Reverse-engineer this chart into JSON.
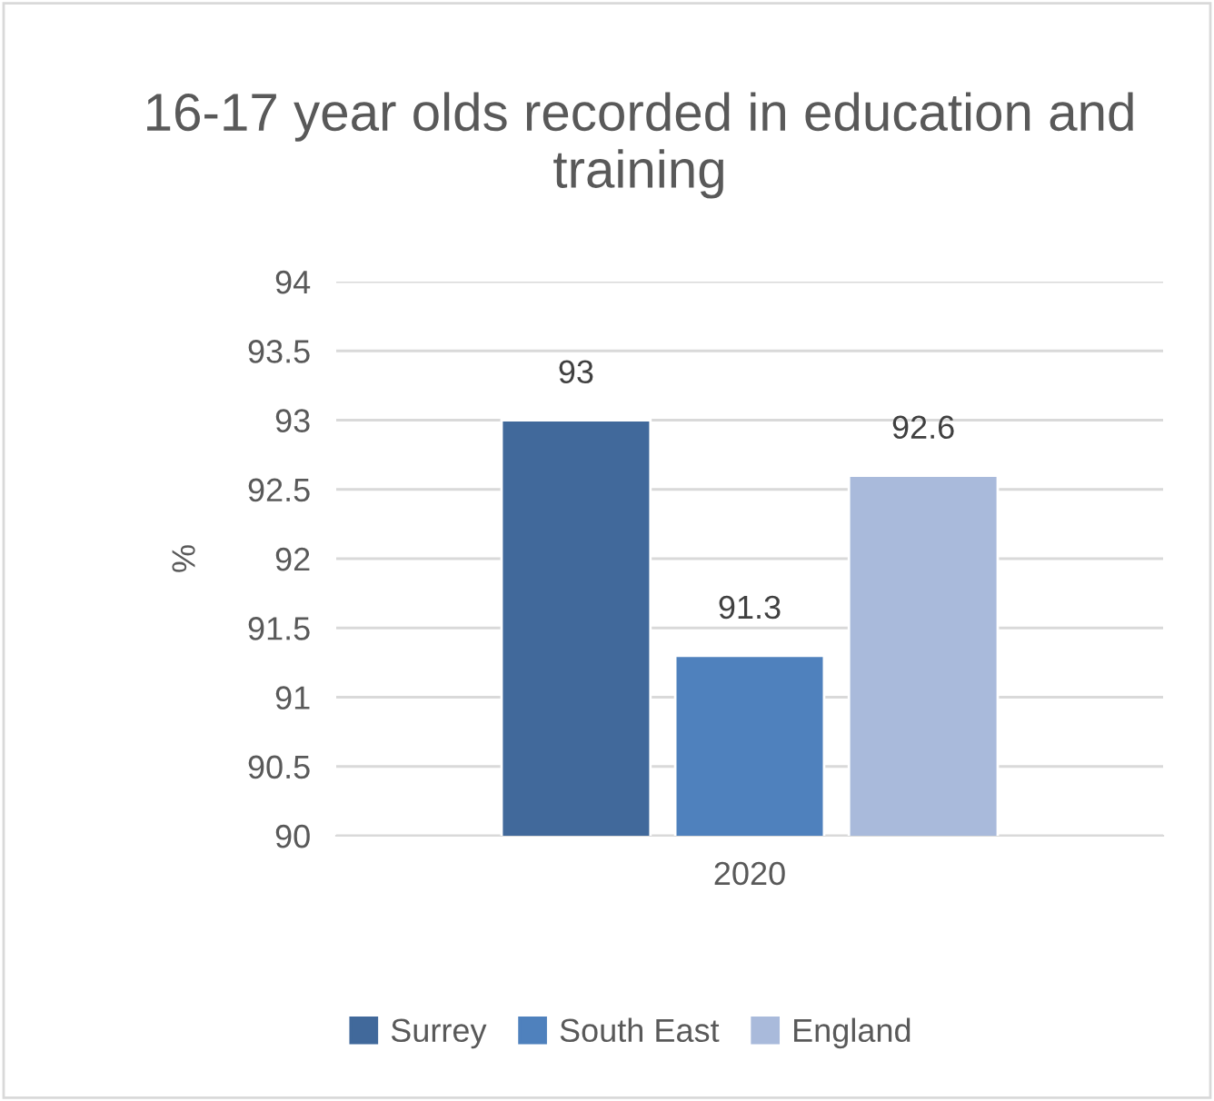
{
  "chart_data": {
    "type": "bar",
    "title": "16-17 year olds recorded in education and training",
    "ylabel": "%",
    "categories": [
      "2020"
    ],
    "series": [
      {
        "name": "Surrey",
        "color": "#41699b",
        "values": [
          93
        ]
      },
      {
        "name": "South East",
        "color": "#4f81bd",
        "values": [
          91.3
        ]
      },
      {
        "name": "England",
        "color": "#a9badb",
        "values": [
          92.6
        ]
      }
    ],
    "ylim": [
      90,
      94
    ],
    "yticks": [
      90,
      90.5,
      91,
      91.5,
      92,
      92.5,
      93,
      93.5,
      94
    ],
    "grid": "y",
    "legend": "bottom",
    "data_labels": true
  }
}
